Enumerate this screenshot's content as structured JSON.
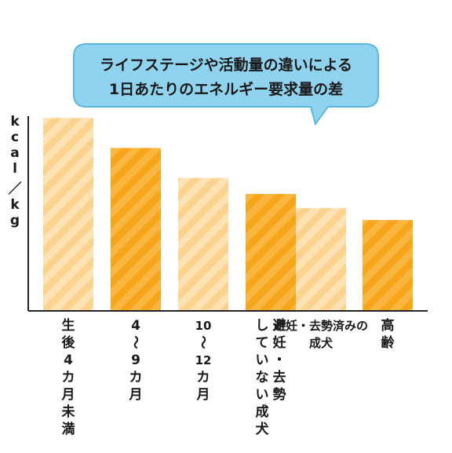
{
  "chart_data": {
    "type": "bar",
    "title_lines": [
      "ライフステージや活動量の違いによる",
      "1日あたりのエネルギー要求量の差"
    ],
    "ylabel": "kcal／kg",
    "ylim": [
      0,
      100
    ],
    "categories": [
      [
        "生",
        "後",
        "4",
        "カ",
        "月",
        "未",
        "満"
      ],
      [
        "4",
        "〜",
        "9",
        "カ",
        "月"
      ],
      [
        "10",
        "〜",
        "12",
        "カ",
        "月"
      ],
      [
        "避妊・去勢",
        "していない成犬"
      ],
      [
        "避妊・去勢済みの",
        "成犬"
      ],
      [
        "高",
        "齢"
      ]
    ],
    "values": [
      96,
      81,
      66,
      58,
      51,
      45
    ],
    "styles": [
      "light",
      "solid",
      "light",
      "solid",
      "light",
      "solid"
    ]
  },
  "colors": {
    "bubble_fill": "#8fd3ee",
    "bubble_stroke": "#5bb8dc",
    "light_base": "#fbd38f",
    "light_stripe": "#fde3b3",
    "solid_base": "#f7a51a",
    "solid_stripe": "#f9b640",
    "axis": "#222222"
  }
}
